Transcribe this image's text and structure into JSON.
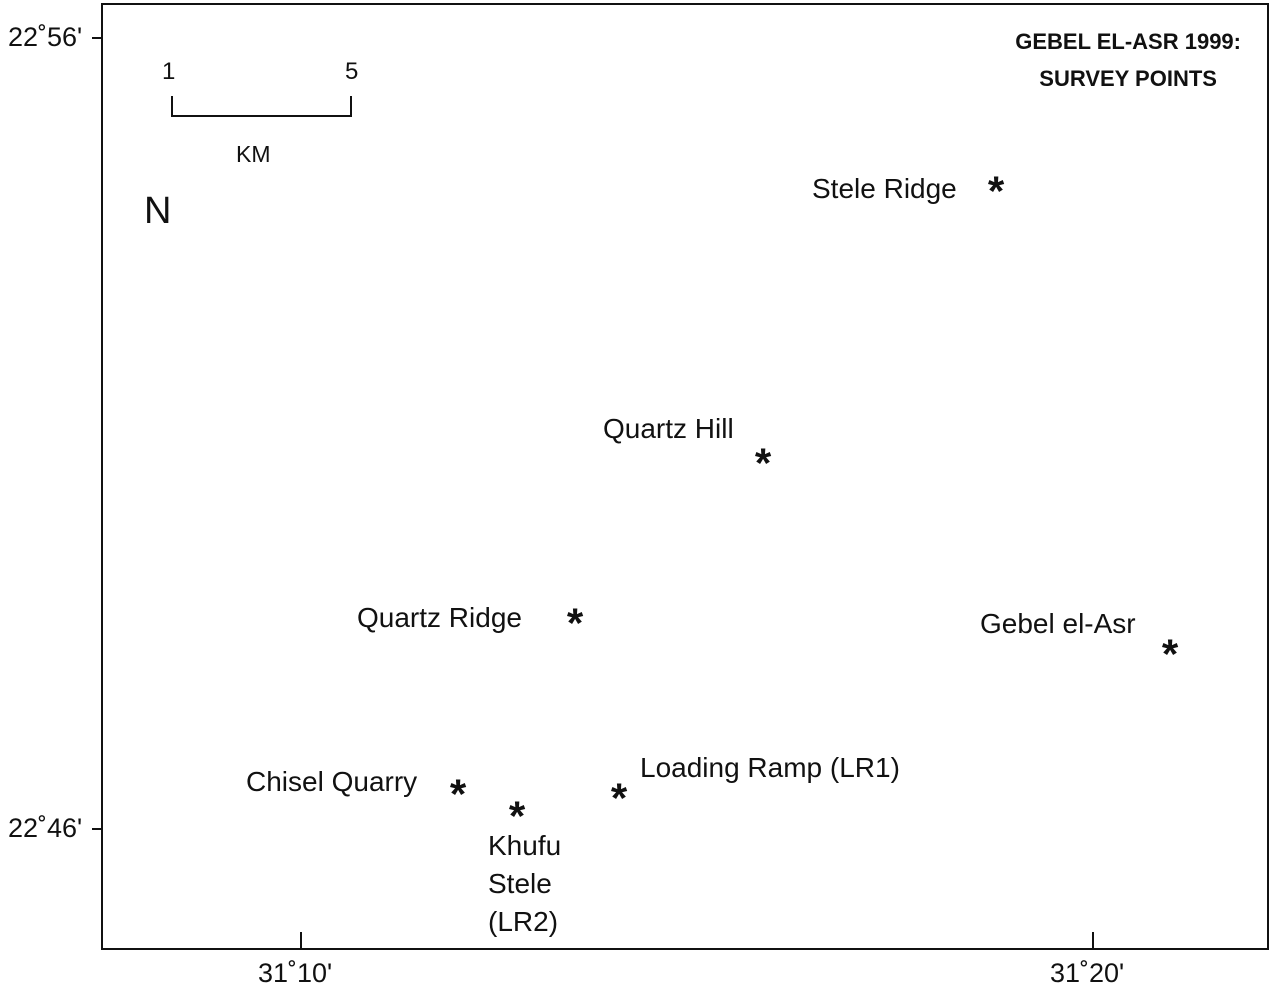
{
  "map": {
    "title_line1": "GEBEL EL-ASR 1999:",
    "title_line2": "SURVEY POINTS",
    "latitudes": [
      "22˚56'",
      "22˚46'"
    ],
    "longitudes": [
      "31˚10'",
      "31˚20'"
    ],
    "scale": {
      "start": "1",
      "end": "5",
      "unit": "KM"
    },
    "north_label": "N"
  },
  "sites": [
    {
      "name": "Stele Ridge",
      "marker": "*"
    },
    {
      "name": "Quartz Hill",
      "marker": "*"
    },
    {
      "name": "Quartz Ridge",
      "marker": "*"
    },
    {
      "name": "Gebel el-Asr",
      "marker": "*"
    },
    {
      "name": "Chisel Quarry",
      "marker": "*"
    },
    {
      "name_lines": [
        "Khufu",
        "Stele",
        "(LR2)"
      ],
      "marker": "*"
    },
    {
      "name": "Loading Ramp (LR1)",
      "marker": "*"
    }
  ]
}
